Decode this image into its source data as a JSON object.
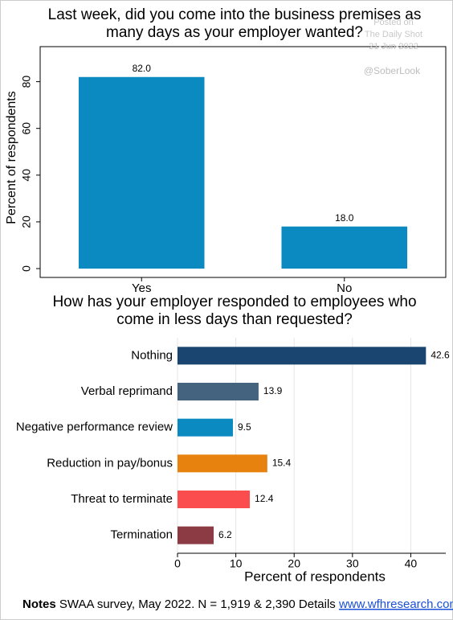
{
  "chart_data": [
    {
      "type": "bar",
      "title": [
        "Last week, did you come into the business premises as",
        "many days as your employer wanted?"
      ],
      "watermark": [
        "Posted on",
        "The Daily Shot",
        "21-Jun-2022"
      ],
      "annotation": "@SoberLook",
      "y_label": "Percent of respondents",
      "categories": [
        "Yes",
        "No"
      ],
      "values": [
        82,
        18
      ],
      "value_labels": [
        "82.0",
        "18.0"
      ],
      "color": "#0a8ac1",
      "ylim": [
        0,
        95
      ],
      "yticks": [
        0,
        20,
        40,
        60,
        80
      ],
      "grid": false
    },
    {
      "type": "barh",
      "title": [
        "How has your employer responded to employees who",
        "come in less days than requested?"
      ],
      "x_label": "Percent of respondents",
      "categories": [
        "Nothing",
        "Verbal reprimand",
        "Negative performance review",
        "Reduction in pay/bonus",
        "Threat to terminate",
        "Termination"
      ],
      "values": [
        42.6,
        13.9,
        9.5,
        15.4,
        12.4,
        6.2
      ],
      "colors": [
        "#1a4570",
        "#44637e",
        "#0a8ac1",
        "#e8820e",
        "#fb4d4d",
        "#8c3a43"
      ],
      "xlim": [
        0,
        46
      ],
      "xticks": [
        0,
        10,
        20,
        30,
        40
      ],
      "grid": true
    }
  ],
  "notes": {
    "label": "Notes",
    "text": "SWAA survey, May 2022. N = 1,919 & 2,390 Details",
    "link": "www.wfhresearch.com"
  }
}
